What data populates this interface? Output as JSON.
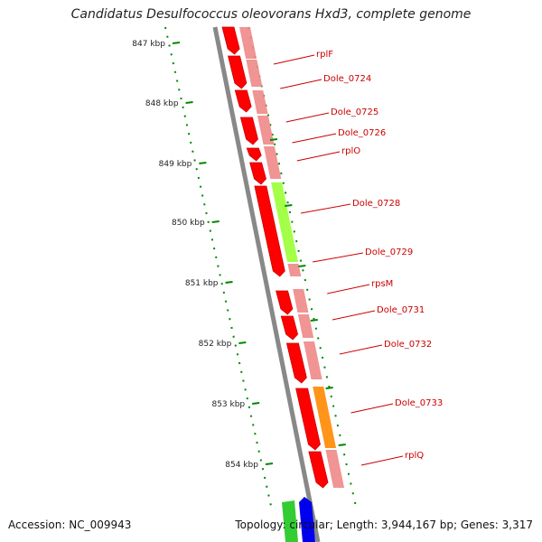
{
  "title": "Candidatus Desulfococcus oleovorans Hxd3, complete genome",
  "footer": {
    "accession": "Accession: NC_009943",
    "summary": "Topology: circular; Length: 3,944,167 bp; Genes: 3,317"
  },
  "ruler": {
    "ticks": [
      "847 kbp",
      "848 kbp",
      "849 kbp",
      "850 kbp",
      "851 kbp",
      "852 kbp",
      "853 kbp",
      "854 kbp"
    ],
    "color": "#008800"
  },
  "genes": [
    {
      "name": "rplF",
      "color": "#ff0000",
      "track_color": "#ee8888"
    },
    {
      "name": "Dole_0724",
      "color": "#ff0000",
      "track_color": "#ee8888"
    },
    {
      "name": "Dole_0725",
      "color": "#ff0000",
      "track_color": "#ee8888"
    },
    {
      "name": "Dole_0726",
      "color": "#ff0000",
      "track_color": "#ee8888"
    },
    {
      "name": "rplO",
      "color": "#ff0000",
      "track_color": "#ee8888"
    },
    {
      "name": "Dole_0728",
      "color": "#ff0000",
      "track_color": "#99ff33"
    },
    {
      "name": "Dole_0729",
      "color": "#ff0000",
      "track_color": "#ee8888"
    },
    {
      "name": "rpsM",
      "color": "#ff0000",
      "track_color": "#ee8888"
    },
    {
      "name": "Dole_0731",
      "color": "#ff0000",
      "track_color": "#ee8888"
    },
    {
      "name": "Dole_0732",
      "color": "#ff0000",
      "track_color": "#ee8888"
    },
    {
      "name": "Dole_0733",
      "color": "#ff0000",
      "track_color": "#ff8800"
    },
    {
      "name": "rplQ",
      "color": "#ff0000",
      "track_color": "#ee8888"
    }
  ],
  "colors": {
    "backbone": "#888888",
    "label": "#cc0000",
    "next_gene_a": "#33cc33",
    "next_gene_b": "#0000ee"
  }
}
